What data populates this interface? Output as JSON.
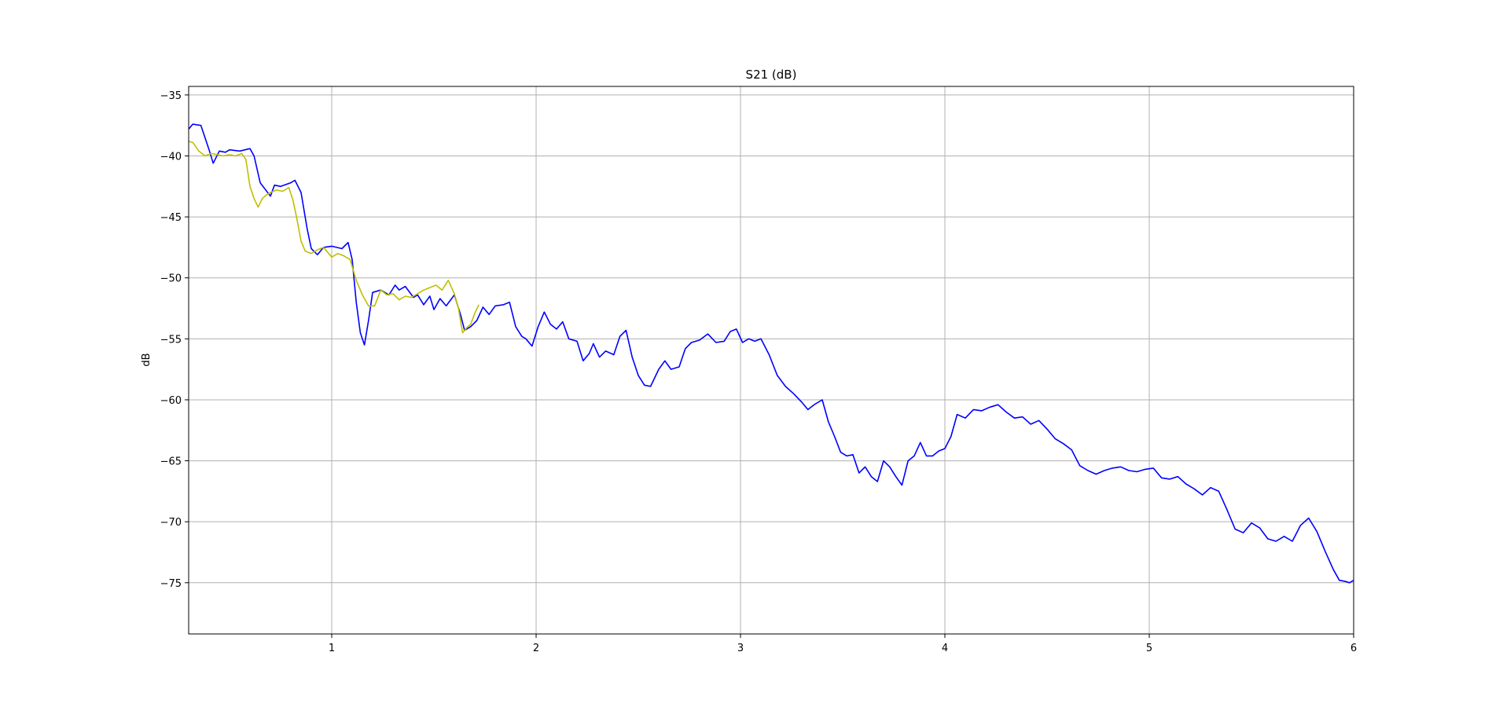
{
  "chart_data": {
    "type": "line",
    "title": "S21 (dB)",
    "xlabel": "",
    "ylabel": "dB",
    "xlim": [
      0.3,
      6.0
    ],
    "ylim": [
      -79.2,
      -34.3
    ],
    "grid": true,
    "xticks": [
      1,
      2,
      3,
      4,
      5,
      6
    ],
    "yticks": [
      -35,
      -40,
      -45,
      -50,
      -55,
      -60,
      -65,
      -70,
      -75
    ],
    "series": [
      {
        "color": "#0000ff",
        "x": [
          0.3,
          0.32,
          0.36,
          0.4,
          0.42,
          0.45,
          0.48,
          0.5,
          0.55,
          0.6,
          0.62,
          0.65,
          0.7,
          0.72,
          0.75,
          0.8,
          0.82,
          0.85,
          0.88,
          0.9,
          0.93,
          0.96,
          1.0,
          1.05,
          1.08,
          1.1,
          1.12,
          1.14,
          1.16,
          1.18,
          1.2,
          1.24,
          1.28,
          1.31,
          1.33,
          1.36,
          1.4,
          1.42,
          1.45,
          1.48,
          1.5,
          1.53,
          1.56,
          1.6,
          1.63,
          1.65,
          1.68,
          1.71,
          1.74,
          1.77,
          1.8,
          1.84,
          1.87,
          1.9,
          1.93,
          1.95,
          1.98,
          2.01,
          2.04,
          2.07,
          2.1,
          2.13,
          2.16,
          2.2,
          2.23,
          2.26,
          2.28,
          2.31,
          2.34,
          2.38,
          2.41,
          2.44,
          2.47,
          2.5,
          2.53,
          2.56,
          2.6,
          2.63,
          2.66,
          2.7,
          2.73,
          2.76,
          2.8,
          2.84,
          2.88,
          2.92,
          2.95,
          2.98,
          3.01,
          3.04,
          3.07,
          3.1,
          3.14,
          3.18,
          3.22,
          3.26,
          3.3,
          3.33,
          3.36,
          3.4,
          3.43,
          3.46,
          3.49,
          3.52,
          3.55,
          3.58,
          3.61,
          3.64,
          3.67,
          3.7,
          3.73,
          3.76,
          3.79,
          3.82,
          3.85,
          3.88,
          3.91,
          3.94,
          3.97,
          4.0,
          4.03,
          4.06,
          4.1,
          4.14,
          4.18,
          4.22,
          4.26,
          4.3,
          4.34,
          4.38,
          4.42,
          4.46,
          4.5,
          4.54,
          4.58,
          4.62,
          4.66,
          4.7,
          4.74,
          4.78,
          4.82,
          4.86,
          4.9,
          4.94,
          4.98,
          5.02,
          5.06,
          5.1,
          5.14,
          5.18,
          5.22,
          5.26,
          5.3,
          5.34,
          5.38,
          5.42,
          5.46,
          5.5,
          5.54,
          5.58,
          5.62,
          5.66,
          5.7,
          5.74,
          5.78,
          5.82,
          5.86,
          5.9,
          5.93,
          5.96,
          5.98,
          6.0
        ],
        "y": [
          -37.8,
          -37.4,
          -37.5,
          -39.5,
          -40.6,
          -39.6,
          -39.7,
          -39.5,
          -39.6,
          -39.4,
          -40.0,
          -42.2,
          -43.3,
          -42.4,
          -42.5,
          -42.2,
          -42.0,
          -43.0,
          -46.0,
          -47.6,
          -48.1,
          -47.5,
          -47.4,
          -47.6,
          -47.1,
          -48.5,
          -52.0,
          -54.5,
          -55.5,
          -53.5,
          -51.2,
          -51.0,
          -51.4,
          -50.6,
          -51.0,
          -50.7,
          -51.6,
          -51.4,
          -52.2,
          -51.5,
          -52.6,
          -51.7,
          -52.3,
          -51.4,
          -53.0,
          -54.3,
          -54.0,
          -53.5,
          -52.4,
          -53.0,
          -52.3,
          -52.2,
          -52.0,
          -54.0,
          -54.8,
          -55.0,
          -55.6,
          -54.0,
          -52.8,
          -53.8,
          -54.2,
          -53.6,
          -55.0,
          -55.2,
          -56.8,
          -56.2,
          -55.4,
          -56.5,
          -56.0,
          -56.3,
          -54.8,
          -54.3,
          -56.5,
          -58.0,
          -58.8,
          -58.9,
          -57.5,
          -56.8,
          -57.5,
          -57.3,
          -55.8,
          -55.3,
          -55.1,
          -54.6,
          -55.3,
          -55.2,
          -54.4,
          -54.2,
          -55.3,
          -55.0,
          -55.2,
          -55.0,
          -56.3,
          -58.0,
          -58.9,
          -59.5,
          -60.2,
          -60.8,
          -60.4,
          -60.0,
          -61.8,
          -63.0,
          -64.3,
          -64.6,
          -64.5,
          -66.0,
          -65.5,
          -66.3,
          -66.7,
          -65.0,
          -65.5,
          -66.3,
          -67.0,
          -65.0,
          -64.6,
          -63.5,
          -64.6,
          -64.6,
          -64.2,
          -64.0,
          -63.0,
          -61.2,
          -61.5,
          -60.8,
          -60.9,
          -60.6,
          -60.4,
          -61.0,
          -61.5,
          -61.4,
          -62.0,
          -61.7,
          -62.4,
          -63.2,
          -63.6,
          -64.1,
          -65.4,
          -65.8,
          -66.1,
          -65.8,
          -65.6,
          -65.5,
          -65.8,
          -65.9,
          -65.7,
          -65.6,
          -66.4,
          -66.5,
          -66.3,
          -66.9,
          -67.3,
          -67.8,
          -67.2,
          -67.5,
          -69.0,
          -70.6,
          -70.9,
          -70.1,
          -70.5,
          -71.4,
          -71.6,
          -71.2,
          -71.6,
          -70.3,
          -69.7,
          -70.8,
          -72.4,
          -73.9,
          -74.8,
          -74.9,
          -75.0,
          -74.8
        ]
      },
      {
        "color": "#bfbf00",
        "x": [
          0.3,
          0.32,
          0.35,
          0.38,
          0.41,
          0.44,
          0.47,
          0.5,
          0.53,
          0.56,
          0.58,
          0.6,
          0.62,
          0.64,
          0.66,
          0.68,
          0.7,
          0.73,
          0.76,
          0.79,
          0.81,
          0.83,
          0.85,
          0.87,
          0.9,
          0.93,
          0.96,
          1.0,
          1.03,
          1.06,
          1.09,
          1.12,
          1.15,
          1.18,
          1.21,
          1.24,
          1.27,
          1.3,
          1.33,
          1.36,
          1.39,
          1.42,
          1.45,
          1.48,
          1.51,
          1.54,
          1.57,
          1.6,
          1.62,
          1.64,
          1.66,
          1.68,
          1.7,
          1.72
        ],
        "y": [
          -38.8,
          -38.9,
          -39.6,
          -40.0,
          -39.8,
          -39.9,
          -40.0,
          -39.9,
          -40.0,
          -39.8,
          -40.3,
          -42.5,
          -43.5,
          -44.2,
          -43.5,
          -43.2,
          -43.0,
          -42.8,
          -42.9,
          -42.6,
          -43.6,
          -45.2,
          -47.0,
          -47.8,
          -48.0,
          -47.7,
          -47.5,
          -48.3,
          -48.0,
          -48.2,
          -48.5,
          -50.2,
          -51.4,
          -52.3,
          -52.3,
          -51.0,
          -51.4,
          -51.3,
          -51.8,
          -51.5,
          -51.6,
          -51.3,
          -51.0,
          -50.8,
          -50.6,
          -51.0,
          -50.2,
          -51.3,
          -52.5,
          -54.5,
          -54.1,
          -53.8,
          -52.9,
          -52.2
        ]
      }
    ]
  }
}
